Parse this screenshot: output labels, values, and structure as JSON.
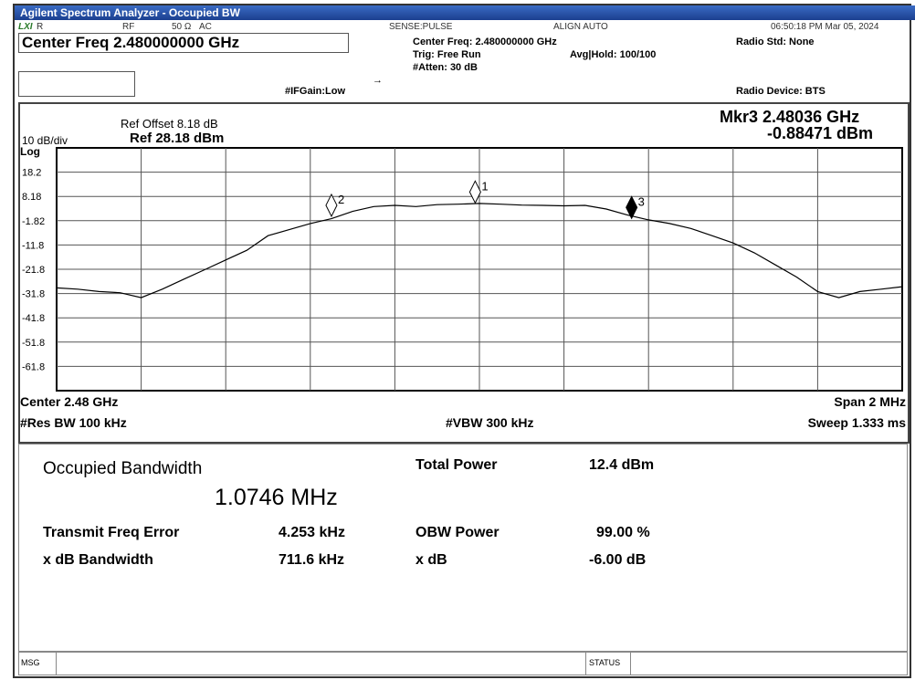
{
  "window": {
    "title": "Agilent Spectrum Analyzer - Occupied BW"
  },
  "status_bar": {
    "lxi": "LXI",
    "r": "R",
    "rf": "RF",
    "impedance": "50 Ω",
    "coupling": "AC",
    "sense": "SENSE:PULSE",
    "align": "ALIGN AUTO",
    "clock": "06:50:18 PM Mar 05, 2024"
  },
  "settings": {
    "center_freq": "Center Freq 2.480000000 GHz",
    "if_gain": "#IFGain:Low",
    "center_freq_small": "Center Freq: 2.480000000 GHz",
    "trig": "Trig: Free Run",
    "atten": "#Atten: 30 dB",
    "avg_hold": "Avg|Hold: 100/100",
    "radio_std": "Radio Std: None",
    "radio_device": "Radio Device: BTS"
  },
  "plot_header": {
    "ref_offset": "Ref Offset 8.18 dB",
    "scale": "10 dB/div",
    "ref_level": "Ref 28.18 dBm",
    "log": "Log",
    "marker_freq": "Mkr3  2.48036 GHz",
    "marker_level": "-0.88471 dBm"
  },
  "plot_footer": {
    "center": "Center  2.48 GHz",
    "span": "Span 2 MHz",
    "res_bw": "#Res BW  100 kHz",
    "vbw": "#VBW  300 kHz",
    "sweep": "Sweep  1.333 ms"
  },
  "chart_data": {
    "type": "line",
    "color": "#000000",
    "x": [
      2.479,
      2.47905,
      2.4791,
      2.47915,
      2.4792,
      2.47925,
      2.4793,
      2.47935,
      2.4794,
      2.47945,
      2.4795,
      2.47955,
      2.4796,
      2.47965,
      2.4797,
      2.47975,
      2.4798,
      2.47985,
      2.4799,
      2.47995,
      2.48,
      2.48005,
      2.4801,
      2.48015,
      2.4802,
      2.48025,
      2.4803,
      2.48035,
      2.4804,
      2.48045,
      2.4805,
      2.48055,
      2.4806,
      2.48065,
      2.4807,
      2.48075,
      2.4808,
      2.48085,
      2.4809,
      2.48095,
      2.481
    ],
    "values": [
      -29.5,
      -30,
      -31,
      -31.5,
      -33.5,
      -30,
      -26,
      -22,
      -18,
      -14,
      -8,
      -5.5,
      -3,
      -1,
      2,
      4,
      4.5,
      4,
      4.8,
      5,
      5.3,
      5,
      4.6,
      4.5,
      4.3,
      4.5,
      3,
      0.5,
      -1.5,
      -3,
      -5,
      -8,
      -11,
      -15,
      -20,
      -25,
      -31,
      -33.5,
      -31,
      -30,
      -29
    ],
    "xlim": [
      2.479,
      2.481
    ],
    "ylim": [
      -71.82,
      28.18
    ],
    "yticks": [
      {
        "value": 18.18,
        "label": "18.2"
      },
      8.18,
      -1.82,
      {
        "value": -11.82,
        "label": "-11.8"
      },
      {
        "value": -21.82,
        "label": "-21.8"
      },
      {
        "value": -31.82,
        "label": "-31.8"
      },
      {
        "value": -41.82,
        "label": "-41.8"
      },
      {
        "value": -51.82,
        "label": "-51.8"
      },
      {
        "value": -61.82,
        "label": "-61.8"
      }
    ],
    "grid": true,
    "markers": [
      {
        "label": "1",
        "x": 2.47999,
        "value": 5.5
      },
      {
        "label": "2",
        "x": 2.47965,
        "value": 0
      },
      {
        "label": "3",
        "x": 2.48036,
        "value": -0.88471
      }
    ]
  },
  "results": {
    "title": "Occupied Bandwidth",
    "obw": "1.0746 MHz",
    "rows": [
      [
        "Total Power",
        "12.4 dBm"
      ],
      [
        "Transmit Freq Error",
        "4.253 kHz",
        "OBW Power",
        "99.00 %"
      ],
      [
        "x dB Bandwidth",
        "711.6 kHz",
        "x dB",
        "-6.00 dB"
      ]
    ]
  },
  "bottom_bar": {
    "msg": "MSG",
    "status": "STATUS"
  }
}
